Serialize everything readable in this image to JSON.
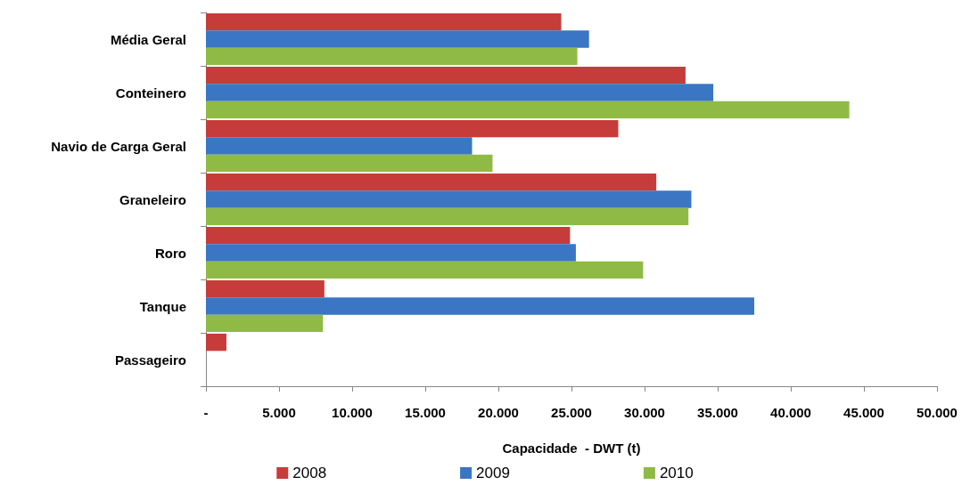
{
  "chart_data": {
    "type": "bar",
    "orientation": "horizontal",
    "xlabel": "Capacidade  - DWT (t)",
    "categories": [
      "Média Geral",
      "Conteinero",
      "Navio de Carga Geral",
      "Graneleiro",
      "Roro",
      "Tanque",
      "Passageiro"
    ],
    "series": [
      {
        "name": "2008",
        "color": "#c63c3a",
        "values": [
          24300,
          32800,
          28200,
          30800,
          24900,
          8100,
          1400
        ]
      },
      {
        "name": "2009",
        "color": "#3a76c4",
        "values": [
          26200,
          34700,
          18200,
          33200,
          25300,
          37500,
          null
        ]
      },
      {
        "name": "2010",
        "color": "#8fba45",
        "values": [
          25400,
          44000,
          19600,
          33000,
          29900,
          8000,
          null
        ]
      }
    ],
    "xlim": [
      0,
      50000
    ],
    "xticks": [
      {
        "value": 0,
        "label": "-"
      },
      {
        "value": 5000,
        "label": "5.000"
      },
      {
        "value": 10000,
        "label": "10.000"
      },
      {
        "value": 15000,
        "label": "15.000"
      },
      {
        "value": 20000,
        "label": "20.000"
      },
      {
        "value": 25000,
        "label": "25.000"
      },
      {
        "value": 30000,
        "label": "30.000"
      },
      {
        "value": 35000,
        "label": "35.000"
      },
      {
        "value": 40000,
        "label": "40.000"
      },
      {
        "value": 45000,
        "label": "45.000"
      },
      {
        "value": 50000,
        "label": "50.000"
      }
    ],
    "grid": false,
    "legend": "bottom"
  }
}
